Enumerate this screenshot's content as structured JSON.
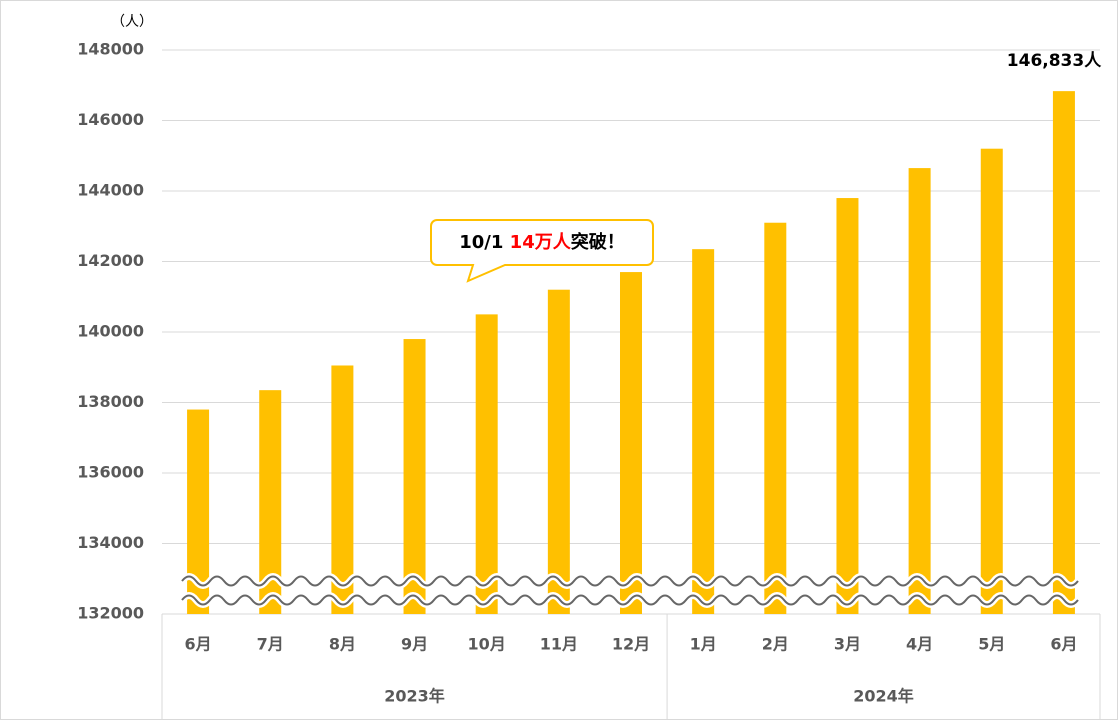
{
  "chart_data": {
    "type": "bar",
    "y_unit": "（人）",
    "category_groups": [
      {
        "name": "2023年",
        "categories": [
          "6月",
          "7月",
          "8月",
          "9月",
          "10月",
          "11月",
          "12月"
        ]
      },
      {
        "name": "2024年",
        "categories": [
          "1月",
          "2月",
          "3月",
          "4月",
          "5月",
          "6月"
        ]
      }
    ],
    "values": [
      137800,
      138350,
      139050,
      139800,
      140500,
      141200,
      141700,
      142350,
      143100,
      143800,
      144650,
      145200,
      146833
    ],
    "value_labels": [
      null,
      null,
      null,
      null,
      null,
      null,
      null,
      null,
      null,
      null,
      null,
      null,
      "146,833人"
    ],
    "color": "#ffc000",
    "ylim": [
      132000,
      148000
    ],
    "yticks": [
      132000,
      134000,
      136000,
      138000,
      140000,
      142000,
      144000,
      146000,
      148000
    ],
    "grid": true,
    "axis_break": true,
    "annotation": {
      "parts": [
        "10/1 ",
        "14万人",
        "突破！"
      ],
      "highlight_color": "#ff0000"
    }
  }
}
